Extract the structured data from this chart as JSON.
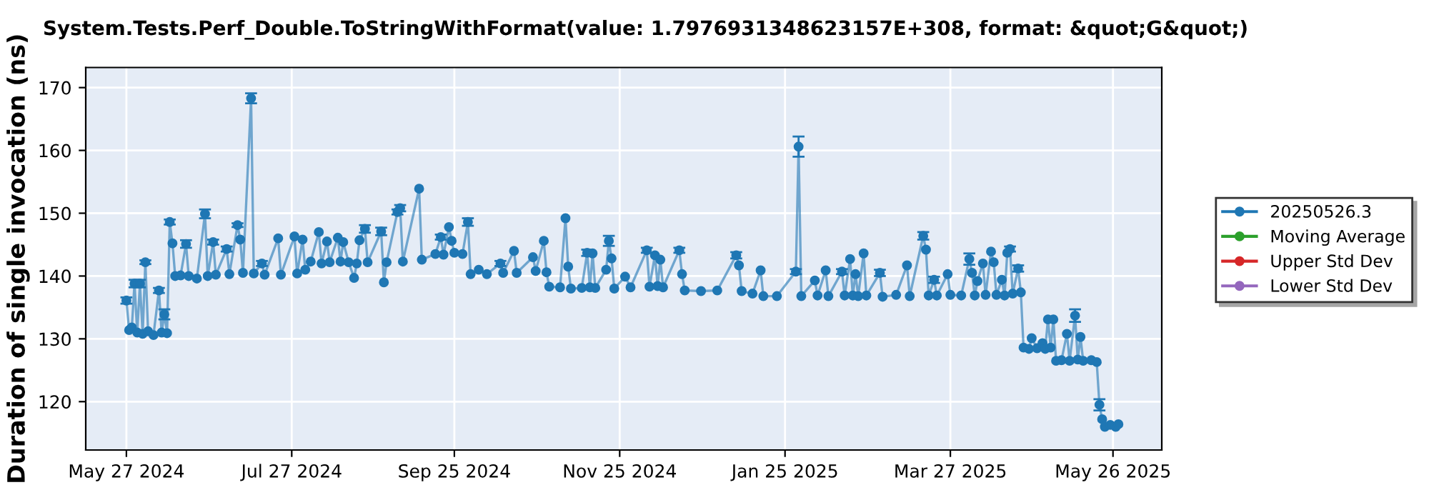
{
  "chart_data": {
    "type": "line",
    "title": "System.Tests.Perf_Double.ToStringWithFormat(value: 1.7976931348623157E+308, format: &quot;G&quot;)",
    "ylabel": "Duration of single invocation (ns)",
    "x": [
      "2024-05-27",
      "2024-05-28",
      "2024-05-29",
      "2024-05-30",
      "2024-05-31",
      "2024-06-01",
      "2024-06-02",
      "2024-06-03",
      "2024-06-04",
      "2024-06-06",
      "2024-06-08",
      "2024-06-09",
      "2024-06-10",
      "2024-06-11",
      "2024-06-12",
      "2024-06-13",
      "2024-06-14",
      "2024-06-16",
      "2024-06-18",
      "2024-06-19",
      "2024-06-22",
      "2024-06-25",
      "2024-06-26",
      "2024-06-28",
      "2024-06-29",
      "2024-07-03",
      "2024-07-04",
      "2024-07-07",
      "2024-07-08",
      "2024-07-09",
      "2024-07-12",
      "2024-07-13",
      "2024-07-16",
      "2024-07-17",
      "2024-07-22",
      "2024-07-23",
      "2024-07-28",
      "2024-07-29",
      "2024-07-31",
      "2024-08-01",
      "2024-08-03",
      "2024-08-06",
      "2024-08-07",
      "2024-08-09",
      "2024-08-10",
      "2024-08-13",
      "2024-08-14",
      "2024-08-15",
      "2024-08-17",
      "2024-08-19",
      "2024-08-20",
      "2024-08-21",
      "2024-08-23",
      "2024-08-24",
      "2024-08-29",
      "2024-08-30",
      "2024-08-31",
      "2024-09-04",
      "2024-09-05",
      "2024-09-06",
      "2024-09-12",
      "2024-09-13",
      "2024-09-18",
      "2024-09-20",
      "2024-09-21",
      "2024-09-23",
      "2024-09-24",
      "2024-09-25",
      "2024-09-28",
      "2024-09-30",
      "2024-10-01",
      "2024-10-04",
      "2024-10-07",
      "2024-10-12",
      "2024-10-13",
      "2024-10-17",
      "2024-10-18",
      "2024-10-24",
      "2024-10-25",
      "2024-10-28",
      "2024-10-29",
      "2024-10-30",
      "2024-11-03",
      "2024-11-05",
      "2024-11-06",
      "2024-11-07",
      "2024-11-11",
      "2024-11-13",
      "2024-11-14",
      "2024-11-15",
      "2024-11-16",
      "2024-11-20",
      "2024-11-21",
      "2024-11-22",
      "2024-11-23",
      "2024-11-27",
      "2024-11-29",
      "2024-12-05",
      "2024-12-06",
      "2024-12-08",
      "2024-12-09",
      "2024-12-10",
      "2024-12-11",
      "2024-12-17",
      "2024-12-18",
      "2024-12-19",
      "2024-12-25",
      "2024-12-31",
      "2025-01-07",
      "2025-01-08",
      "2025-01-09",
      "2025-01-13",
      "2025-01-16",
      "2025-01-17",
      "2025-01-22",
      "2025-01-29",
      "2025-01-30",
      "2025-01-31",
      "2025-02-05",
      "2025-02-06",
      "2025-02-09",
      "2025-02-10",
      "2025-02-15",
      "2025-02-16",
      "2025-02-18",
      "2025-02-19",
      "2025-02-20",
      "2025-02-21",
      "2025-02-23",
      "2025-02-24",
      "2025-03-01",
      "2025-03-02",
      "2025-03-07",
      "2025-03-11",
      "2025-03-12",
      "2025-03-17",
      "2025-03-18",
      "2025-03-19",
      "2025-03-21",
      "2025-03-22",
      "2025-03-26",
      "2025-03-27",
      "2025-03-31",
      "2025-04-03",
      "2025-04-04",
      "2025-04-05",
      "2025-04-06",
      "2025-04-08",
      "2025-04-09",
      "2025-04-11",
      "2025-04-12",
      "2025-04-13",
      "2025-04-15",
      "2025-04-16",
      "2025-04-17",
      "2025-04-18",
      "2025-04-19",
      "2025-04-21",
      "2025-04-22",
      "2025-04-23",
      "2025-04-25",
      "2025-04-26",
      "2025-04-28",
      "2025-04-30",
      "2025-05-01",
      "2025-05-02",
      "2025-05-03",
      "2025-05-04",
      "2025-05-05",
      "2025-05-07",
      "2025-05-09",
      "2025-05-10",
      "2025-05-12",
      "2025-05-13",
      "2025-05-14",
      "2025-05-15",
      "2025-05-18",
      "2025-05-20",
      "2025-05-21",
      "2025-05-22",
      "2025-05-23",
      "2025-05-25",
      "2025-05-27",
      "2025-05-28"
    ],
    "series": [
      {
        "name": "20250526.3",
        "color": "#1f77b4",
        "values": [
          136.1,
          131.4,
          131.8,
          138.8,
          131.0,
          138.8,
          130.8,
          142.2,
          131.2,
          130.6,
          137.7,
          131.0,
          133.9,
          130.9,
          148.6,
          145.2,
          140.0,
          140.1,
          145.1,
          140.0,
          139.6,
          149.9,
          140.0,
          145.4,
          140.2,
          144.3,
          140.3,
          148.1,
          145.8,
          140.5,
          168.3,
          140.4,
          142.0,
          140.2,
          146.0,
          140.2,
          146.3,
          140.4,
          145.8,
          141.0,
          142.3,
          147.0,
          142.0,
          145.5,
          142.2,
          146.1,
          142.3,
          145.4,
          142.2,
          139.7,
          142.0,
          145.7,
          147.5,
          142.2,
          147.1,
          139.0,
          142.2,
          150.2,
          150.8,
          142.3,
          153.9,
          142.6,
          143.5,
          146.2,
          143.4,
          147.8,
          145.6,
          143.7,
          143.5,
          148.6,
          140.3,
          141.0,
          140.3,
          142.0,
          140.5,
          144.0,
          140.5,
          143.0,
          140.8,
          145.6,
          140.6,
          138.3,
          138.2,
          149.2,
          141.5,
          138.0,
          138.1,
          143.7,
          138.2,
          143.6,
          138.1,
          141.0,
          145.6,
          142.8,
          138.0,
          139.9,
          138.2,
          144.1,
          138.3,
          143.3,
          138.4,
          142.6,
          138.2,
          144.1,
          140.3,
          137.7,
          137.6,
          137.7,
          143.3,
          141.7,
          137.6,
          137.2,
          140.9,
          136.8,
          136.8,
          140.7,
          160.6,
          136.8,
          139.3,
          136.9,
          140.9,
          136.8,
          140.7,
          136.9,
          142.7,
          136.9,
          140.3,
          136.8,
          143.6,
          136.9,
          140.5,
          136.7,
          137.0,
          141.7,
          136.8,
          146.4,
          144.2,
          136.9,
          139.4,
          136.9,
          140.3,
          137.0,
          136.9,
          142.7,
          140.5,
          136.9,
          139.2,
          142.0,
          137.0,
          143.9,
          142.2,
          137.0,
          139.4,
          136.9,
          143.7,
          144.3,
          137.2,
          141.2,
          137.4,
          128.6,
          128.4,
          130.1,
          128.5,
          129.3,
          128.4,
          133.1,
          128.6,
          133.1,
          126.5,
          126.6,
          130.8,
          126.5,
          133.7,
          126.7,
          130.3,
          126.5,
          126.6,
          126.3,
          119.5,
          117.2,
          116.0,
          116.3,
          116.0,
          116.4
        ],
        "errors": [
          0.5,
          null,
          null,
          0.6,
          null,
          0.6,
          null,
          0.3,
          null,
          null,
          0.4,
          null,
          0.8,
          null,
          0.4,
          null,
          null,
          null,
          0.6,
          null,
          null,
          0.7,
          null,
          0.4,
          null,
          0.4,
          null,
          0.3,
          null,
          null,
          0.8,
          null,
          0.4,
          null,
          null,
          null,
          null,
          null,
          null,
          null,
          null,
          null,
          null,
          null,
          null,
          null,
          null,
          null,
          null,
          null,
          null,
          null,
          0.6,
          null,
          0.6,
          null,
          null,
          0.4,
          0.5,
          null,
          null,
          null,
          null,
          0.4,
          null,
          null,
          null,
          null,
          null,
          0.6,
          null,
          null,
          null,
          0.4,
          null,
          null,
          null,
          null,
          null,
          null,
          null,
          null,
          null,
          null,
          null,
          null,
          null,
          0.5,
          null,
          null,
          null,
          null,
          0.8,
          null,
          null,
          null,
          null,
          0.4,
          null,
          null,
          null,
          null,
          null,
          0.4,
          null,
          null,
          null,
          null,
          0.5,
          null,
          null,
          null,
          null,
          null,
          null,
          0.4,
          1.6,
          null,
          null,
          null,
          null,
          null,
          0.4,
          null,
          null,
          null,
          null,
          null,
          null,
          null,
          0.5,
          null,
          null,
          null,
          null,
          0.6,
          null,
          null,
          0.5,
          null,
          null,
          null,
          null,
          0.9,
          null,
          null,
          null,
          null,
          null,
          null,
          null,
          null,
          null,
          null,
          null,
          0.4,
          null,
          0.5,
          null,
          null,
          null,
          null,
          null,
          null,
          null,
          null,
          null,
          null,
          null,
          null,
          null,
          null,
          1.0,
          null,
          null,
          null,
          null,
          null,
          0.9,
          null,
          null,
          null,
          null,
          null
        ]
      },
      {
        "name": "Moving Average",
        "color": "#2ca02c",
        "values": [
          null,
          null,
          null,
          null,
          null,
          null,
          null,
          null,
          null,
          null,
          null,
          null,
          null,
          null,
          null,
          null,
          null,
          null,
          null,
          null,
          null,
          null,
          null,
          null,
          null,
          null,
          null,
          null,
          null,
          null,
          null,
          null,
          null,
          null,
          null,
          null,
          null,
          null,
          null,
          null,
          null,
          null,
          null,
          null,
          null,
          null,
          null,
          null,
          null,
          null,
          null,
          null,
          null,
          null,
          null,
          null,
          null,
          null,
          null,
          null,
          null,
          null,
          null,
          null,
          null,
          null,
          null,
          null,
          null,
          null,
          null,
          null,
          null,
          null,
          null,
          null,
          null,
          null,
          null,
          null,
          null,
          null,
          null,
          null,
          null,
          null,
          null,
          null,
          null,
          null,
          null,
          null,
          null,
          null,
          null,
          null,
          null,
          null,
          null,
          null,
          null,
          null,
          null,
          null,
          null,
          null,
          null,
          null,
          null,
          null,
          null,
          null,
          null,
          null,
          null,
          null,
          null,
          null,
          null,
          null,
          null,
          null,
          null,
          null,
          null,
          null,
          null,
          null,
          null,
          null,
          null,
          null,
          null,
          null,
          null,
          null,
          null,
          null,
          null,
          null,
          null,
          null,
          null,
          null,
          null,
          null,
          null,
          null,
          null,
          null,
          null,
          null,
          null,
          null,
          null,
          null,
          null,
          null,
          null,
          null,
          null,
          null,
          null,
          null,
          null,
          null,
          null,
          null,
          null,
          null,
          null,
          null,
          null,
          null,
          null,
          null,
          null,
          null,
          null,
          null,
          null,
          null,
          null,
          null
        ]
      },
      {
        "name": "Upper Std Dev",
        "color": "#d62728",
        "values": [
          null,
          null,
          null,
          null,
          null,
          null,
          null,
          null,
          null,
          null,
          null,
          null,
          null,
          null,
          null,
          null,
          null,
          null,
          null,
          null,
          null,
          null,
          null,
          null,
          null,
          null,
          null,
          null,
          null,
          null,
          null,
          null,
          null,
          null,
          null,
          null,
          null,
          null,
          null,
          null,
          null,
          null,
          null,
          null,
          null,
          null,
          null,
          null,
          null,
          null,
          null,
          null,
          null,
          null,
          null,
          null,
          null,
          null,
          null,
          null,
          null,
          null,
          null,
          null,
          null,
          null,
          null,
          null,
          null,
          null,
          null,
          null,
          null,
          null,
          null,
          null,
          null,
          null,
          null,
          null,
          null,
          null,
          null,
          null,
          null,
          null,
          null,
          null,
          null,
          null,
          null,
          null,
          null,
          null,
          null,
          null,
          null,
          null,
          null,
          null,
          null,
          null,
          null,
          null,
          null,
          null,
          null,
          null,
          null,
          null,
          null,
          null,
          null,
          null,
          null,
          null,
          null,
          null,
          null,
          null,
          null,
          null,
          null,
          null,
          null,
          null,
          null,
          null,
          null,
          null,
          null,
          null,
          null,
          null,
          null,
          null,
          null,
          null,
          null,
          null,
          null,
          null,
          null,
          null,
          null,
          null,
          null,
          null,
          null,
          null,
          null,
          null,
          null,
          null,
          null,
          null,
          null,
          null,
          null,
          null,
          null,
          null,
          null,
          null,
          null,
          null,
          null,
          null,
          null,
          null,
          null,
          null,
          null,
          null,
          null,
          null,
          null,
          null,
          null,
          null,
          null,
          null,
          null,
          null
        ]
      },
      {
        "name": "Lower Std Dev",
        "color": "#9467bd",
        "values": [
          null,
          null,
          null,
          null,
          null,
          null,
          null,
          null,
          null,
          null,
          null,
          null,
          null,
          null,
          null,
          null,
          null,
          null,
          null,
          null,
          null,
          null,
          null,
          null,
          null,
          null,
          null,
          null,
          null,
          null,
          null,
          null,
          null,
          null,
          null,
          null,
          null,
          null,
          null,
          null,
          null,
          null,
          null,
          null,
          null,
          null,
          null,
          null,
          null,
          null,
          null,
          null,
          null,
          null,
          null,
          null,
          null,
          null,
          null,
          null,
          null,
          null,
          null,
          null,
          null,
          null,
          null,
          null,
          null,
          null,
          null,
          null,
          null,
          null,
          null,
          null,
          null,
          null,
          null,
          null,
          null,
          null,
          null,
          null,
          null,
          null,
          null,
          null,
          null,
          null,
          null,
          null,
          null,
          null,
          null,
          null,
          null,
          null,
          null,
          null,
          null,
          null,
          null,
          null,
          null,
          null,
          null,
          null,
          null,
          null,
          null,
          null,
          null,
          null,
          null,
          null,
          null,
          null,
          null,
          null,
          null,
          null,
          null,
          null,
          null,
          null,
          null,
          null,
          null,
          null,
          null,
          null,
          null,
          null,
          null,
          null,
          null,
          null,
          null,
          null,
          null,
          null,
          null,
          null,
          null,
          null,
          null,
          null,
          null,
          null,
          null,
          null,
          null,
          null,
          null,
          null,
          null,
          null,
          null,
          null,
          null,
          null,
          null,
          null,
          null,
          null,
          null,
          null,
          null,
          null,
          null,
          null,
          null,
          null,
          null,
          null,
          null,
          null,
          null,
          null,
          null,
          null,
          null,
          null
        ]
      }
    ],
    "xlim": [
      "2024-05-12",
      "2025-06-13"
    ],
    "xticks": [
      {
        "value": "2024-05-27",
        "label": "May 27 2024"
      },
      {
        "value": "2024-07-27",
        "label": "Jul 27 2024"
      },
      {
        "value": "2024-09-25",
        "label": "Sep 25 2024"
      },
      {
        "value": "2024-11-25",
        "label": "Nov 25 2024"
      },
      {
        "value": "2025-01-25",
        "label": "Jan 25 2025"
      },
      {
        "value": "2025-03-27",
        "label": "Mar 27 2025"
      },
      {
        "value": "2025-05-26",
        "label": "May 26 2025"
      }
    ],
    "ylim": [
      112.3,
      173.2
    ],
    "yticks": [
      120,
      130,
      140,
      150,
      160,
      170
    ],
    "grid": true,
    "legend": "right",
    "marker": "circle",
    "line_style": "solid"
  }
}
